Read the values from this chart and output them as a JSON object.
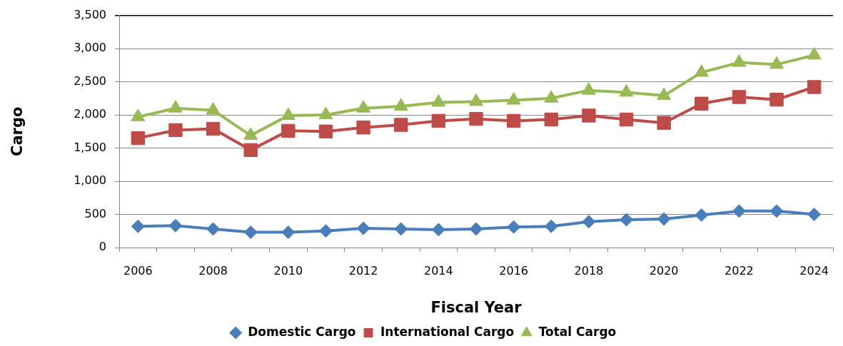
{
  "chart_data": {
    "type": "line",
    "xlabel": "Fiscal Year",
    "ylabel": "Cargo",
    "categories": [
      "2006",
      null,
      "2008",
      null,
      "2010",
      null,
      "2012",
      null,
      "2014",
      null,
      "2016",
      null,
      "2018",
      null,
      "2020",
      null,
      "2022",
      null,
      "2024"
    ],
    "ylim": [
      0,
      3500
    ],
    "yticks": [
      0,
      500,
      {
        "value": 1000,
        "label": "1,000"
      },
      {
        "value": 1500,
        "label": "1,500"
      },
      {
        "value": 2000,
        "label": "2,000"
      },
      {
        "value": 2500,
        "label": "2,500"
      },
      {
        "value": 3000,
        "label": "3,000"
      },
      {
        "value": 3500,
        "label": "3,500"
      }
    ],
    "grid": "y",
    "legend": "bottom",
    "series": [
      {
        "name": "Domestic Cargo",
        "color": "#4a7ebb",
        "marker": "diamond",
        "values": [
          320,
          330,
          280,
          230,
          230,
          250,
          290,
          280,
          270,
          280,
          310,
          320,
          390,
          420,
          430,
          490,
          550,
          550,
          500
        ]
      },
      {
        "name": "International Cargo",
        "color": "#be4b48",
        "marker": "square",
        "values": [
          1650,
          1770,
          1790,
          1470,
          1760,
          1750,
          1810,
          1850,
          1910,
          1940,
          1910,
          1930,
          1990,
          1930,
          1880,
          2170,
          2270,
          2230,
          2420
        ]
      },
      {
        "name": "Total Cargo",
        "color": "#98b954",
        "marker": "triangle",
        "values": [
          1970,
          2100,
          2070,
          1690,
          1990,
          2000,
          2100,
          2130,
          2190,
          2200,
          2220,
          2250,
          2370,
          2340,
          2290,
          2640,
          2790,
          2760,
          2900
        ]
      }
    ]
  }
}
